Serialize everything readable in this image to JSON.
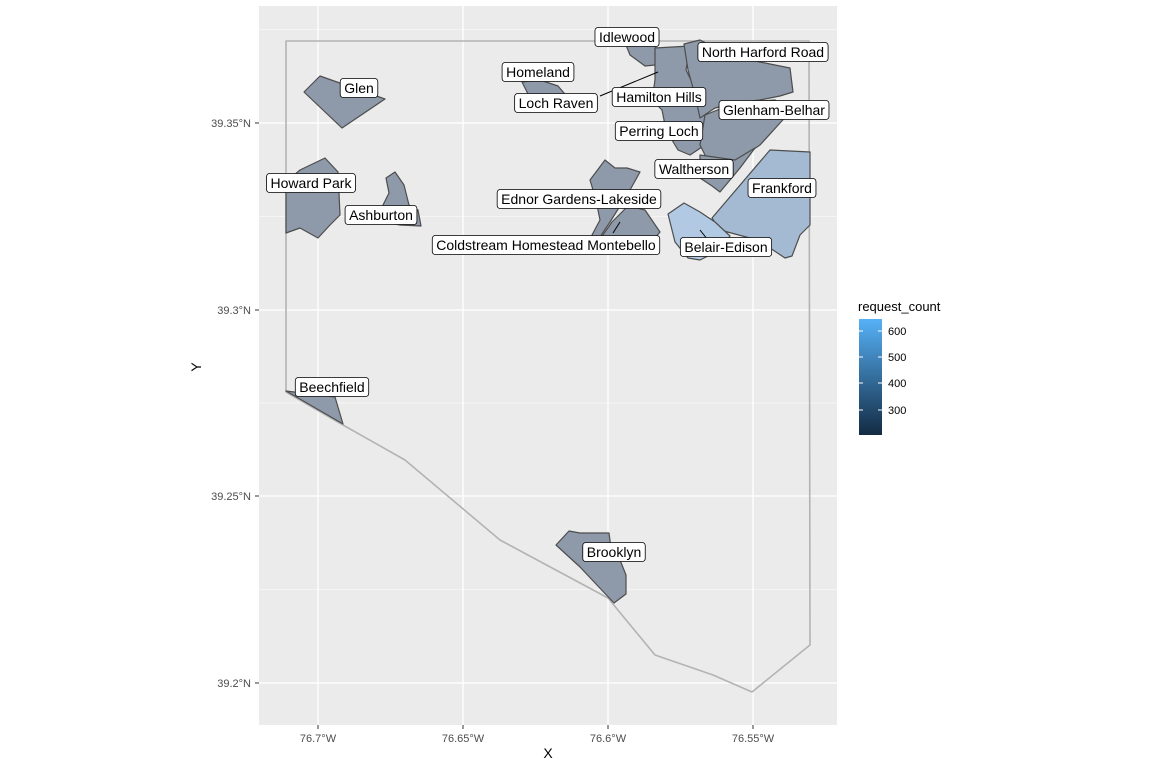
{
  "chart_data": {
    "type": "map",
    "xlabel": "X",
    "ylabel": "Y",
    "x_ticks": [
      "76.7°W",
      "76.65°W",
      "76.6°W",
      "76.55°W"
    ],
    "y_ticks": [
      "39.35°N",
      "39.3°N",
      "39.25°N",
      "39.2°N"
    ],
    "grid": true,
    "legend": {
      "title": "request_count",
      "placement": "right",
      "ticks": [
        "600",
        "500",
        "400",
        "300"
      ],
      "color_low": "#132B43",
      "color_high": "#56B1F7"
    },
    "neighborhoods": [
      {
        "name": "Idlewood"
      },
      {
        "name": "North Harford Road"
      },
      {
        "name": "Homeland"
      },
      {
        "name": "Glen"
      },
      {
        "name": "Hamilton Hills"
      },
      {
        "name": "Loch Raven"
      },
      {
        "name": "Glenham-Belhar"
      },
      {
        "name": "Perring Loch"
      },
      {
        "name": "Waltherson"
      },
      {
        "name": "Howard Park"
      },
      {
        "name": "Frankford"
      },
      {
        "name": "Ednor Gardens-Lakeside"
      },
      {
        "name": "Ashburton"
      },
      {
        "name": "Coldstream Homestead Montebello"
      },
      {
        "name": "Belair-Edison"
      },
      {
        "name": "Beechfield"
      },
      {
        "name": "Brooklyn"
      }
    ]
  }
}
